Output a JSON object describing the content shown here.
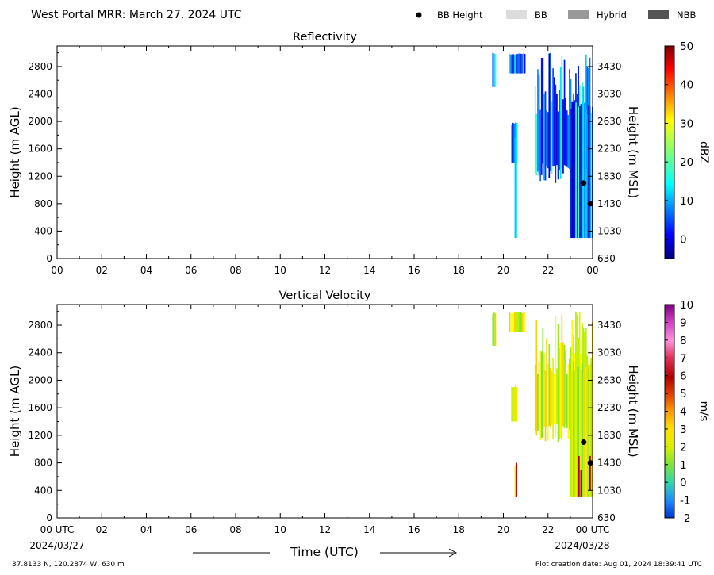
{
  "header": {
    "title": "West Portal MRR:  March 27, 2024 UTC",
    "legend": [
      {
        "label": "BB Height",
        "kind": "dot",
        "color": "#000000"
      },
      {
        "label": "BB",
        "kind": "box",
        "color": "#dcdcdc"
      },
      {
        "label": "Hybrid",
        "kind": "box",
        "color": "#999999"
      },
      {
        "label": "NBB",
        "kind": "box",
        "color": "#555555"
      }
    ]
  },
  "footer": {
    "location": "37.8133 N, 120.2874 W, 630 m",
    "created": "Plot creation date: Aug 01, 2024 18:39:41 UTC",
    "xlabel": "Time (UTC)",
    "date_start": "2024/03/27",
    "date_end": "2024/03/28"
  },
  "chart_data": [
    {
      "type": "heatmap",
      "title": "Reflectivity",
      "ylabel": "Height (m AGL)",
      "ylabel2": "Height (m MSL)",
      "x_ticks": [
        "00",
        "02",
        "04",
        "06",
        "08",
        "10",
        "12",
        "14",
        "16",
        "18",
        "20",
        "22",
        "00"
      ],
      "xlim": [
        0,
        24
      ],
      "y_ticks": [
        "0",
        "400",
        "800",
        "1200",
        "1600",
        "2000",
        "2400",
        "2800"
      ],
      "ylim": [
        0,
        3100
      ],
      "y2_ticks": [
        "630",
        "1030",
        "1430",
        "1830",
        "2230",
        "2630",
        "3030",
        "3430"
      ],
      "colorbar": {
        "label": "dBZ",
        "ticks": [
          "50",
          "40",
          "30",
          "20",
          "10",
          "0"
        ],
        "min": -5,
        "max": 50
      },
      "bb_height": [
        {
          "t": 23.6,
          "h": 1100
        },
        {
          "t": 23.9,
          "h": 800
        }
      ],
      "echo_columns": [
        {
          "t_start": 19.5,
          "t_end": 19.65,
          "bottom": 2500,
          "top": 3000
        },
        {
          "t_start": 20.25,
          "t_end": 20.95,
          "bottom": 2700,
          "top": 3000
        },
        {
          "t_start": 20.35,
          "t_end": 20.6,
          "bottom": 1400,
          "top": 2000
        },
        {
          "t_start": 20.5,
          "t_end": 20.6,
          "bottom": 300,
          "top": 1800
        },
        {
          "t_start": 21.4,
          "t_end": 24.0,
          "bottom": 1100,
          "top": 3000
        },
        {
          "t_start": 23.0,
          "t_end": 24.0,
          "bottom": 300,
          "top": 2300
        }
      ]
    },
    {
      "type": "heatmap",
      "title": "Vertical Velocity",
      "ylabel": "Height (m AGL)",
      "ylabel2": "Height (m MSL)",
      "x_ticks": [
        "00 UTC",
        "02",
        "04",
        "06",
        "08",
        "10",
        "12",
        "14",
        "16",
        "18",
        "20",
        "22",
        "00 UTC"
      ],
      "xlim": [
        0,
        24
      ],
      "y_ticks": [
        "0",
        "400",
        "800",
        "1200",
        "1600",
        "2000",
        "2400",
        "2800"
      ],
      "ylim": [
        0,
        3100
      ],
      "y2_ticks": [
        "630",
        "1030",
        "1430",
        "1830",
        "2230",
        "2630",
        "3030",
        "3430"
      ],
      "colorbar": {
        "label": "m/s",
        "ticks": [
          "10",
          "9",
          "8",
          "7",
          "6",
          "5",
          "4",
          "3",
          "2",
          "1",
          "0",
          "-1",
          "-2"
        ],
        "min": -2,
        "max": 10
      },
      "bb_height": [
        {
          "t": 23.6,
          "h": 1100
        },
        {
          "t": 23.9,
          "h": 800
        }
      ],
      "echo_columns": [
        {
          "t_start": 19.5,
          "t_end": 19.65,
          "bottom": 2500,
          "top": 3000
        },
        {
          "t_start": 20.25,
          "t_end": 20.95,
          "bottom": 2700,
          "top": 3000
        },
        {
          "t_start": 20.35,
          "t_end": 20.6,
          "bottom": 1400,
          "top": 1950
        },
        {
          "t_start": 20.5,
          "t_end": 20.6,
          "bottom": 300,
          "top": 800
        },
        {
          "t_start": 21.4,
          "t_end": 24.0,
          "bottom": 1100,
          "top": 3000
        },
        {
          "t_start": 23.0,
          "t_end": 24.0,
          "bottom": 300,
          "top": 2300
        }
      ]
    }
  ]
}
